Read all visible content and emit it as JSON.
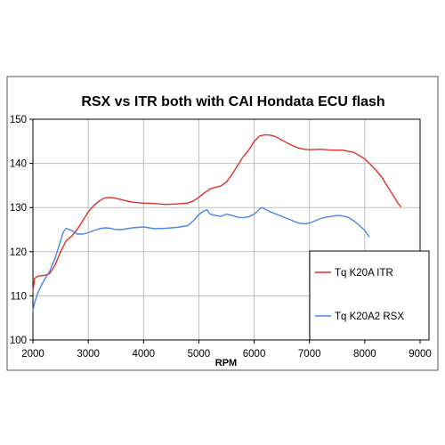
{
  "chart_data": {
    "type": "line",
    "title": "RSX vs ITR both with CAI Hondata ECU flash",
    "xlabel": "RPM",
    "ylabel": "",
    "xlim": [
      2000,
      9000
    ],
    "ylim": [
      100,
      150
    ],
    "x_ticks": [
      2000,
      3000,
      4000,
      5000,
      6000,
      7000,
      8000,
      9000
    ],
    "y_ticks": [
      100,
      110,
      120,
      130,
      140,
      150
    ],
    "grid": true,
    "legend_position": "bottom-right",
    "series": [
      {
        "name": "Tq K20A ITR",
        "color": "#e0322a",
        "points": [
          [
            2000,
            111
          ],
          [
            2030,
            114
          ],
          [
            2100,
            114.5
          ],
          [
            2200,
            114.6
          ],
          [
            2300,
            115
          ],
          [
            2400,
            117
          ],
          [
            2500,
            120
          ],
          [
            2600,
            122.5
          ],
          [
            2700,
            123.5
          ],
          [
            2800,
            125
          ],
          [
            2900,
            127
          ],
          [
            3000,
            129
          ],
          [
            3100,
            130.5
          ],
          [
            3200,
            131.5
          ],
          [
            3300,
            132.2
          ],
          [
            3400,
            132.3
          ],
          [
            3500,
            132.1
          ],
          [
            3600,
            131.8
          ],
          [
            3700,
            131.5
          ],
          [
            3800,
            131.2
          ],
          [
            4000,
            131
          ],
          [
            4200,
            130.9
          ],
          [
            4400,
            130.7
          ],
          [
            4600,
            130.8
          ],
          [
            4800,
            131
          ],
          [
            4900,
            131.5
          ],
          [
            5000,
            132.3
          ],
          [
            5100,
            133.3
          ],
          [
            5200,
            134.2
          ],
          [
            5300,
            134.6
          ],
          [
            5400,
            134.9
          ],
          [
            5500,
            135.8
          ],
          [
            5600,
            137.5
          ],
          [
            5700,
            139.5
          ],
          [
            5800,
            141.5
          ],
          [
            5900,
            143
          ],
          [
            6000,
            145
          ],
          [
            6100,
            146.2
          ],
          [
            6200,
            146.5
          ],
          [
            6300,
            146.4
          ],
          [
            6400,
            146
          ],
          [
            6500,
            145.3
          ],
          [
            6600,
            144.6
          ],
          [
            6700,
            144
          ],
          [
            6800,
            143.5
          ],
          [
            6900,
            143.2
          ],
          [
            7000,
            143.1
          ],
          [
            7200,
            143.2
          ],
          [
            7400,
            143
          ],
          [
            7600,
            143
          ],
          [
            7800,
            142.5
          ],
          [
            7900,
            141.8
          ],
          [
            8000,
            141
          ],
          [
            8100,
            139.8
          ],
          [
            8200,
            138.5
          ],
          [
            8300,
            137
          ],
          [
            8400,
            135
          ],
          [
            8500,
            133
          ],
          [
            8600,
            131
          ],
          [
            8650,
            130.2
          ]
        ]
      },
      {
        "name": "Tq K20A2 RSX",
        "color": "#4a86e8",
        "points": [
          [
            2000,
            106.5
          ],
          [
            2030,
            108.5
          ],
          [
            2100,
            111
          ],
          [
            2200,
            113.5
          ],
          [
            2300,
            115.5
          ],
          [
            2400,
            118.5
          ],
          [
            2500,
            122.5
          ],
          [
            2550,
            124.5
          ],
          [
            2600,
            125.3
          ],
          [
            2700,
            124.8
          ],
          [
            2800,
            124
          ],
          [
            2900,
            124
          ],
          [
            3000,
            124.3
          ],
          [
            3100,
            124.8
          ],
          [
            3200,
            125.2
          ],
          [
            3300,
            125.4
          ],
          [
            3400,
            125.3
          ],
          [
            3500,
            125
          ],
          [
            3600,
            125
          ],
          [
            3700,
            125.2
          ],
          [
            3800,
            125.4
          ],
          [
            4000,
            125.6
          ],
          [
            4200,
            125.2
          ],
          [
            4400,
            125.3
          ],
          [
            4600,
            125.5
          ],
          [
            4800,
            125.9
          ],
          [
            4900,
            127
          ],
          [
            5000,
            128.4
          ],
          [
            5100,
            129.3
          ],
          [
            5150,
            129.5
          ],
          [
            5200,
            128.5
          ],
          [
            5300,
            128.2
          ],
          [
            5400,
            128
          ],
          [
            5500,
            128.5
          ],
          [
            5600,
            128.2
          ],
          [
            5700,
            127.8
          ],
          [
            5800,
            127.7
          ],
          [
            5900,
            127.9
          ],
          [
            6000,
            128.5
          ],
          [
            6100,
            129.7
          ],
          [
            6150,
            130
          ],
          [
            6200,
            129.6
          ],
          [
            6300,
            129
          ],
          [
            6400,
            128.5
          ],
          [
            6500,
            128
          ],
          [
            6600,
            127.5
          ],
          [
            6700,
            127
          ],
          [
            6800,
            126.5
          ],
          [
            6900,
            126.3
          ],
          [
            7000,
            126.5
          ],
          [
            7100,
            127
          ],
          [
            7200,
            127.5
          ],
          [
            7300,
            127.8
          ],
          [
            7400,
            128
          ],
          [
            7500,
            128.2
          ],
          [
            7600,
            128.1
          ],
          [
            7700,
            127.8
          ],
          [
            7800,
            127
          ],
          [
            7900,
            126
          ],
          [
            8000,
            124.8
          ],
          [
            8080,
            123.4
          ]
        ]
      }
    ]
  }
}
